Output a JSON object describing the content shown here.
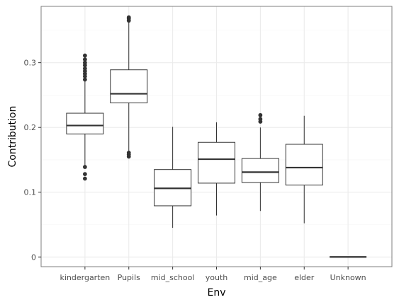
{
  "chart_data": {
    "type": "box",
    "title": "",
    "xlabel": "Env",
    "ylabel": "Contribution",
    "ylim": [
      -0.015,
      0.387
    ],
    "yticks": [
      0,
      0.1,
      0.2,
      0.3
    ],
    "ytick_labels": [
      "0",
      "0.1",
      "0.2",
      "0.3"
    ],
    "grid": true,
    "legend": "none",
    "categories": [
      "kindergarten",
      "Pupils",
      "mid_school",
      "youth",
      "mid_age",
      "elder",
      "Unknown"
    ],
    "boxes": [
      {
        "category": "kindergarten",
        "whisker_low": 0.14,
        "q1": 0.19,
        "median": 0.203,
        "q3": 0.222,
        "whisker_high": 0.272,
        "outliers": [
          0.121,
          0.128,
          0.139,
          0.274,
          0.279,
          0.283,
          0.287,
          0.291,
          0.296,
          0.3,
          0.305,
          0.311
        ]
      },
      {
        "category": "Pupils",
        "whisker_low": 0.162,
        "q1": 0.238,
        "median": 0.252,
        "q3": 0.289,
        "whisker_high": 0.362,
        "outliers": [
          0.155,
          0.158,
          0.161,
          0.365,
          0.368,
          0.37
        ]
      },
      {
        "category": "mid_school",
        "whisker_low": 0.045,
        "q1": 0.079,
        "median": 0.106,
        "q3": 0.135,
        "whisker_high": 0.201,
        "outliers": []
      },
      {
        "category": "youth",
        "whisker_low": 0.064,
        "q1": 0.114,
        "median": 0.151,
        "q3": 0.177,
        "whisker_high": 0.208,
        "outliers": []
      },
      {
        "category": "mid_age",
        "whisker_low": 0.071,
        "q1": 0.115,
        "median": 0.131,
        "q3": 0.152,
        "whisker_high": 0.2,
        "outliers": [
          0.209,
          0.213,
          0.219
        ]
      },
      {
        "category": "elder",
        "whisker_low": 0.052,
        "q1": 0.111,
        "median": 0.138,
        "q3": 0.174,
        "whisker_high": 0.218,
        "outliers": []
      },
      {
        "category": "Unknown",
        "whisker_low": 0.0,
        "q1": 0.0,
        "median": 0.0,
        "q3": 0.0,
        "whisker_high": 0.0,
        "outliers": []
      }
    ],
    "colors": {
      "panel_border": "#7f7f7f",
      "grid_major": "#ebebeb",
      "grid_minor": "#f5f5f5",
      "box_line": "#333333",
      "outlier": "#333333",
      "tick_text": "#4d4d4d",
      "title_text": "#000000"
    }
  }
}
